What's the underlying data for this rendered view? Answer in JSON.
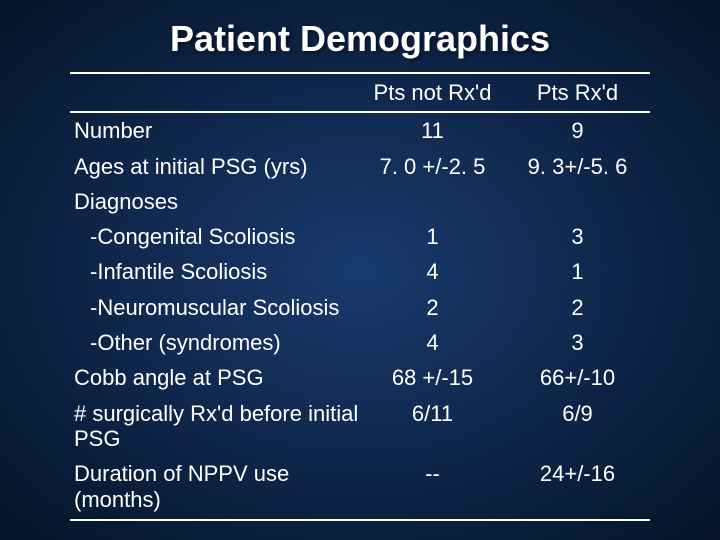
{
  "title": "Patient Demographics",
  "columns": {
    "blank": "",
    "col1": "Pts not Rx'd",
    "col2": "Pts Rx'd"
  },
  "rows": {
    "number": {
      "label": "Number",
      "v1": "11",
      "v2": "9"
    },
    "ages": {
      "label": "Ages at initial PSG (yrs)",
      "v1": "7. 0 +/-2. 5",
      "v2": "9. 3+/-5. 6"
    },
    "diagnoses": {
      "label": "Diagnoses",
      "v1": "",
      "v2": ""
    },
    "congenital": {
      "label": "-Congenital Scoliosis",
      "v1": "1",
      "v2": "3"
    },
    "infantile": {
      "label": "-Infantile Scoliosis",
      "v1": "4",
      "v2": "1"
    },
    "neuromuscular": {
      "label": "-Neuromuscular Scoliosis",
      "v1": "2",
      "v2": "2"
    },
    "other": {
      "label": "-Other (syndromes)",
      "v1": "4",
      "v2": "3"
    },
    "cobb": {
      "label": "Cobb angle at PSG",
      "v1": "68 +/-15",
      "v2": "66+/-10"
    },
    "surgical": {
      "label": "# surgically Rx'd before initial PSG",
      "v1": "6/11",
      "v2": "6/9"
    },
    "duration": {
      "label": "Duration of NPPV use (months)",
      "v1": "--",
      "v2": "24+/-16"
    }
  },
  "styling": {
    "background_gradient_center": "#1a3a6e",
    "background_gradient_mid": "#0a1f3d",
    "background_gradient_edge": "#051428",
    "text_color": "#ffffff",
    "title_fontsize": 36,
    "body_fontsize": 22,
    "border_color": "#ffffff",
    "border_width": 2,
    "font_family": "Arial"
  }
}
